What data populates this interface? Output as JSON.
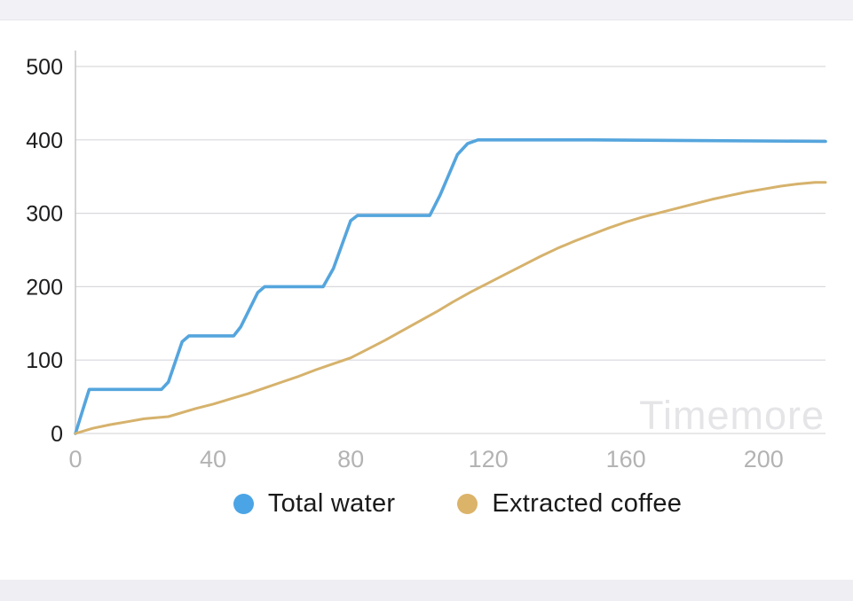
{
  "chart_data": {
    "type": "line",
    "title": "",
    "xlabel": "",
    "ylabel": "",
    "xlim": [
      0,
      218
    ],
    "ylim": [
      0,
      500
    ],
    "x_ticks": [
      0,
      40,
      80,
      120,
      160,
      200
    ],
    "y_ticks": [
      0,
      100,
      200,
      300,
      400,
      500
    ],
    "grid": "horizontal-only",
    "legend_position": "bottom",
    "watermark": "Timemore",
    "series": [
      {
        "name": "Total water",
        "color": "#55a5dd",
        "dot_color": "#4ba4e5",
        "points": [
          [
            0,
            0
          ],
          [
            3,
            45
          ],
          [
            4,
            60
          ],
          [
            25,
            60
          ],
          [
            27,
            70
          ],
          [
            31,
            125
          ],
          [
            33,
            133
          ],
          [
            46,
            133
          ],
          [
            48,
            145
          ],
          [
            53,
            192
          ],
          [
            55,
            200
          ],
          [
            72,
            200
          ],
          [
            75,
            225
          ],
          [
            80,
            290
          ],
          [
            82,
            297
          ],
          [
            103,
            297
          ],
          [
            106,
            325
          ],
          [
            111,
            380
          ],
          [
            114,
            395
          ],
          [
            117,
            400
          ],
          [
            150,
            400
          ],
          [
            218,
            398
          ]
        ]
      },
      {
        "name": "Extracted coffee",
        "color": "#d6b26c",
        "dot_color": "#dbb369",
        "points": [
          [
            0,
            0
          ],
          [
            5,
            7
          ],
          [
            10,
            12
          ],
          [
            15,
            16
          ],
          [
            20,
            20
          ],
          [
            27,
            23
          ],
          [
            35,
            34
          ],
          [
            40,
            40
          ],
          [
            45,
            47
          ],
          [
            50,
            54
          ],
          [
            55,
            62
          ],
          [
            60,
            70
          ],
          [
            65,
            78
          ],
          [
            70,
            87
          ],
          [
            75,
            95
          ],
          [
            80,
            103
          ],
          [
            85,
            115
          ],
          [
            90,
            127
          ],
          [
            95,
            140
          ],
          [
            100,
            153
          ],
          [
            105,
            166
          ],
          [
            110,
            180
          ],
          [
            115,
            193
          ],
          [
            120,
            205
          ],
          [
            125,
            217
          ],
          [
            130,
            229
          ],
          [
            135,
            241
          ],
          [
            140,
            252
          ],
          [
            145,
            262
          ],
          [
            150,
            271
          ],
          [
            155,
            280
          ],
          [
            160,
            288
          ],
          [
            165,
            295
          ],
          [
            170,
            301
          ],
          [
            175,
            307
          ],
          [
            180,
            313
          ],
          [
            185,
            319
          ],
          [
            190,
            324
          ],
          [
            195,
            329
          ],
          [
            200,
            333
          ],
          [
            205,
            337
          ],
          [
            210,
            340
          ],
          [
            215,
            342
          ],
          [
            218,
            342
          ]
        ]
      }
    ],
    "axis_colors": {
      "y_tick_label": "#1d1d1f",
      "x_tick_label": "#b3b3b3",
      "gridline": "#d9d9de",
      "axis_line": "#c5c5ca"
    }
  }
}
